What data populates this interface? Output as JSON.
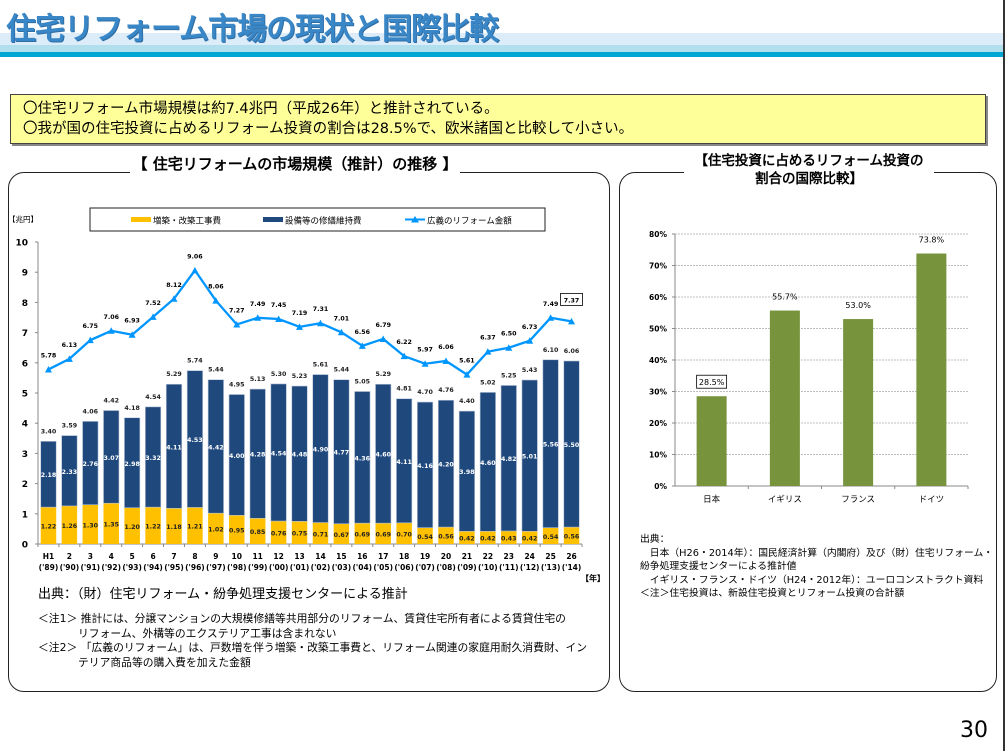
{
  "page": {
    "title": "住宅リフォーム市場の現状と国際比較",
    "page_number": "30"
  },
  "summary": {
    "lines": [
      "〇住宅リフォーム市場規模は約7.4兆円（平成26年）と推計されている。",
      "〇我が国の住宅投資に占めるリフォーム投資の割合は28.5%で、欧米諸国と比較して小さい。"
    ]
  },
  "left_panel": {
    "title": "【 住宅リフォームの市場規模（推計）の推移 】",
    "source": "出典：（財）住宅リフォーム・紛争処理支援センターによる推計",
    "notes": [
      {
        "label": "＜注1＞",
        "line1": "推計には、分譲マンションの大規模修繕等共用部分のリフォーム、賃貸住宅所有者による賃貸住宅の",
        "line2": "リフォーム、外構等のエクステリア工事は含まれない"
      },
      {
        "label": "＜注2＞",
        "line1": "「広義のリフォーム」は、戸数増を伴う増築・改築工事費と、リフォーム関連の家庭用耐久消費財、イン",
        "line2": "テリア商品等の購入費を加えた金額"
      }
    ]
  },
  "right_panel": {
    "title_line1": "【住宅投資に占めるリフォーム投資の",
    "title_line2": "割合の国際比較】",
    "notes": [
      "出典：",
      "　日本（H26・2014年）：国民経済計算（内閣府）及び（財）住宅リフォーム・",
      "紛争処理支援センターによる推計値",
      "　イギリス・フランス・ドイツ（H24・2012年）：ユーロコンストラクト資料",
      "＜注＞住宅投資は、新設住宅投資とリフォーム投資の合計額"
    ]
  },
  "colors": {
    "yellow": "#ffc000",
    "navy": "#1f497d",
    "line": "#0096ff",
    "green": "#77933c",
    "summary_bg": "#ffff99",
    "title": "#3a87c8"
  },
  "chart_data": [
    {
      "type": "bar",
      "stacked": true,
      "title": "住宅リフォームの市場規模（推計）の推移",
      "ylabel": "【兆円】",
      "xlabel": "【年】",
      "ylim": [
        0,
        10
      ],
      "yticks": [
        0,
        1,
        2,
        3,
        4,
        5,
        6,
        7,
        8,
        9,
        10
      ],
      "grid": false,
      "legend_position": "top",
      "categories": [
        "H1",
        "2",
        "3",
        "4",
        "5",
        "6",
        "7",
        "8",
        "9",
        "10",
        "11",
        "12",
        "13",
        "14",
        "15",
        "16",
        "17",
        "18",
        "19",
        "20",
        "21",
        "22",
        "23",
        "24",
        "25",
        "26"
      ],
      "categories_sub": [
        "('89)",
        "('90)",
        "('91)",
        "('92)",
        "('93)",
        "('94)",
        "('95)",
        "('96)",
        "('97)",
        "('98)",
        "('99)",
        "('00)",
        "('01)",
        "('02)",
        "('03)",
        "('04)",
        "('05)",
        "('06)",
        "('07)",
        "('08)",
        "('09)",
        "('10)",
        "('11)",
        "('12)",
        "('13)",
        "('14)"
      ],
      "series": [
        {
          "name": "増築・改築工事費",
          "kind": "bar",
          "color": "#ffc000",
          "values": [
            1.22,
            1.26,
            1.3,
            1.35,
            1.2,
            1.22,
            1.18,
            1.21,
            1.02,
            0.95,
            0.85,
            0.76,
            0.75,
            0.71,
            0.67,
            0.69,
            0.69,
            0.7,
            0.54,
            0.56,
            0.42,
            0.42,
            0.43,
            0.42,
            0.54,
            0.56
          ]
        },
        {
          "name": "設備等の修繕維持費",
          "kind": "bar",
          "color": "#1f497d",
          "values": [
            2.18,
            2.33,
            2.76,
            3.07,
            2.98,
            3.32,
            4.11,
            4.53,
            4.42,
            4.0,
            4.28,
            4.54,
            4.48,
            4.9,
            4.77,
            4.36,
            4.6,
            4.11,
            4.16,
            4.2,
            3.98,
            4.6,
            4.82,
            5.01,
            5.56,
            5.5
          ]
        },
        {
          "name": "広義のリフォーム金額",
          "kind": "line",
          "marker": "triangle",
          "color": "#0096ff",
          "values": [
            5.78,
            6.13,
            6.75,
            7.06,
            6.93,
            7.52,
            8.12,
            9.06,
            8.06,
            7.27,
            7.49,
            7.45,
            7.19,
            7.31,
            7.01,
            6.56,
            6.79,
            6.22,
            5.97,
            6.06,
            5.61,
            6.37,
            6.5,
            6.73,
            7.49,
            7.37
          ]
        }
      ],
      "totals": [
        3.4,
        3.59,
        4.06,
        4.42,
        4.18,
        4.54,
        5.29,
        5.74,
        5.44,
        4.95,
        5.13,
        5.3,
        5.23,
        5.61,
        5.44,
        5.05,
        5.29,
        4.81,
        4.7,
        4.76,
        4.4,
        5.02,
        5.25,
        5.43,
        6.1,
        6.06
      ],
      "highlighted_label": "7.37"
    },
    {
      "type": "bar",
      "title": "住宅投資に占めるリフォーム投資の割合の国際比較",
      "ylim": [
        0,
        80
      ],
      "yticks": [
        "0%",
        "10%",
        "20%",
        "30%",
        "40%",
        "50%",
        "60%",
        "70%",
        "80%"
      ],
      "grid": true,
      "categories": [
        "日本",
        "イギリス",
        "フランス",
        "ドイツ"
      ],
      "values": [
        28.5,
        55.7,
        53.0,
        73.8
      ],
      "labels": [
        "28.5%",
        "55.7%",
        "53.0%",
        "73.8%"
      ],
      "color": "#77933c",
      "highlighted_label": "28.5%"
    }
  ]
}
